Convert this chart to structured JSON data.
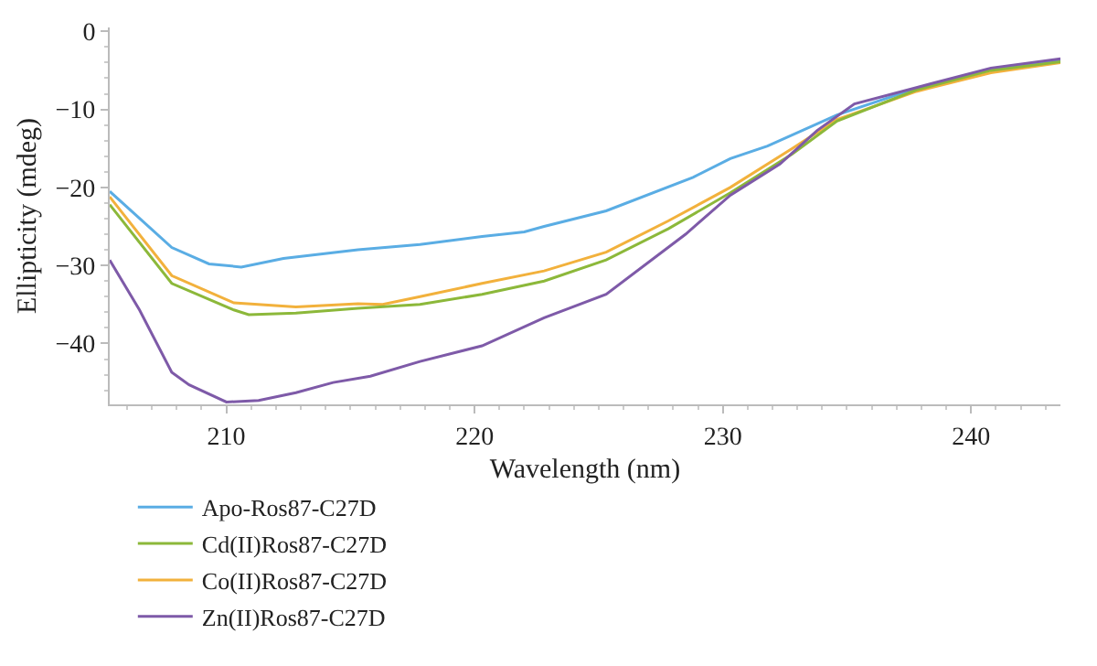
{
  "chart_data": {
    "type": "line",
    "xlabel": "Wavelength (nm)",
    "ylabel": "Ellipticity (mdeg)",
    "xlim": [
      205.3,
      243.6
    ],
    "ylim": [
      -47.8,
      0.5
    ],
    "xticks": [
      210,
      220,
      230,
      240
    ],
    "yticks": [
      0,
      -10,
      -20,
      -30,
      -40
    ],
    "grid": false,
    "legend": "bottom",
    "marker": "none",
    "line_style": "solid",
    "series": [
      {
        "name": "Apo-Ros87-C27D",
        "color": "#5aade4",
        "x": [
          205.3,
          207.8,
          209.3,
          210.6,
          212.3,
          215.3,
          217.8,
          220.3,
          222,
          222.8,
          225.3,
          228.8,
          230.3,
          231.8,
          234.6,
          237.8,
          240.8,
          243.6
        ],
        "values": [
          -20.5,
          -27.7,
          -29.8,
          -30.2,
          -29.1,
          -28,
          -27.3,
          -26.3,
          -25.7,
          -25,
          -23,
          -18.7,
          -16.3,
          -14.7,
          -10.7,
          -7.3,
          -4.9,
          -3.7
        ]
      },
      {
        "name": "Co(II)Ros87-C27D",
        "color": "#f2b13c",
        "x": [
          205.3,
          207.8,
          210.3,
          212.8,
          215.3,
          216.3,
          217.8,
          220.3,
          222.8,
          225.3,
          227.8,
          230.3,
          232.8,
          234.6,
          237.8,
          240.8,
          243.6
        ],
        "values": [
          -21.2,
          -31.3,
          -34.8,
          -35.3,
          -34.9,
          -35,
          -34,
          -32.3,
          -30.7,
          -28.3,
          -24.3,
          -20,
          -15,
          -11.3,
          -7.7,
          -5.3,
          -4
        ]
      },
      {
        "name": "Cd(II)Ros87-C27D",
        "color": "#8cb83a",
        "x": [
          205.3,
          207.8,
          210.3,
          210.9,
          212.8,
          215.3,
          217.8,
          220.3,
          222.8,
          225.3,
          227.8,
          230.3,
          232.8,
          234.6,
          237.8,
          240.8,
          243.6
        ],
        "values": [
          -22.2,
          -32.3,
          -35.7,
          -36.3,
          -36.1,
          -35.5,
          -35,
          -33.7,
          -32,
          -29.3,
          -25.3,
          -20.7,
          -15.7,
          -11.5,
          -7.5,
          -5,
          -3.9
        ]
      },
      {
        "name": "Zn(II)Ros87-C27D",
        "color": "#7e5aa8",
        "x": [
          205.3,
          206.5,
          207.8,
          208.5,
          210,
          211.3,
          212.8,
          214.3,
          215.8,
          217.8,
          220.3,
          222.8,
          225.3,
          228.5,
          230.3,
          232.3,
          233.8,
          235.3,
          237.8,
          240.8,
          243.6
        ],
        "values": [
          -29.3,
          -35.7,
          -43.7,
          -45.3,
          -47.5,
          -47.3,
          -46.3,
          -45,
          -44.2,
          -42.3,
          -40.3,
          -36.7,
          -33.7,
          -26,
          -21,
          -17,
          -12.7,
          -9.3,
          -7.2,
          -4.7,
          -3.5
        ]
      }
    ]
  }
}
